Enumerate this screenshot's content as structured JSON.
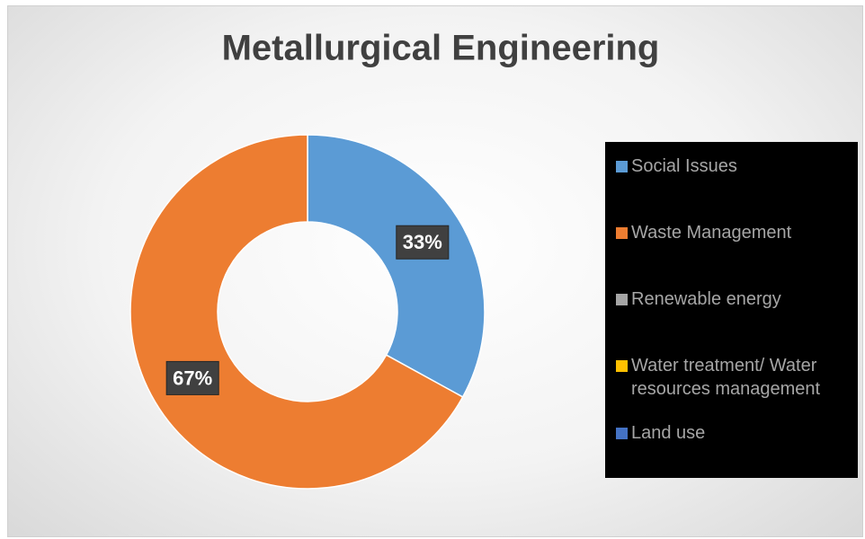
{
  "chart_data": {
    "type": "donut",
    "title": "Metallurgical Engineering",
    "categories": [
      "Social Issues",
      "Waste Management",
      "Renewable energy",
      "Water treatment/ Water resources management",
      "Land use"
    ],
    "values": [
      33,
      67,
      0,
      0,
      0
    ],
    "value_labels": [
      "33%",
      "67%",
      null,
      null,
      null
    ],
    "colors": [
      "#5b9bd5",
      "#ed7d31",
      "#a5a5a5",
      "#ffc000",
      "#4472c4"
    ],
    "legend": "right"
  }
}
